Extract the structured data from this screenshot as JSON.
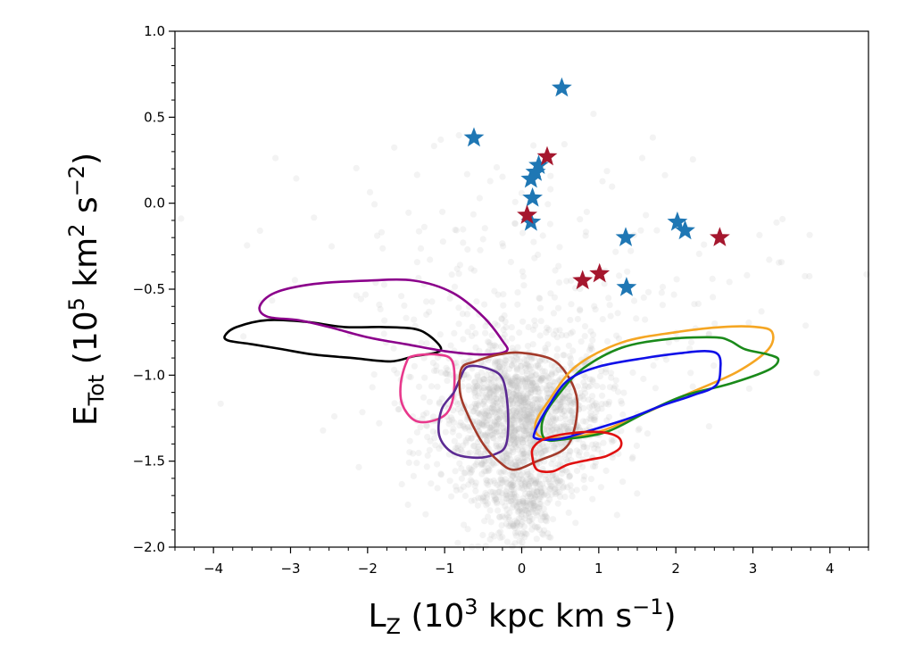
{
  "chart_data": {
    "type": "scatter",
    "xlabel": {
      "main": "L",
      "sub": "Z",
      "mid": " (10",
      "sup": "3",
      "tail": " kpc km s",
      "tailsup": "−1",
      "close": ")"
    },
    "ylabel": {
      "main": "E",
      "sub": "Tot",
      "mid": " (10",
      "sup": "5",
      "tail": " km",
      "sup2": "2",
      "tail2": " s",
      "tailsup": "−2",
      "close": ")"
    },
    "xlim": [
      -4.5,
      4.5
    ],
    "ylim": [
      -2.0,
      1.0
    ],
    "x_ticks": [
      -4,
      -3,
      -2,
      -1,
      0,
      1,
      2,
      3,
      4
    ],
    "y_ticks": [
      -2.0,
      -1.5,
      -1.0,
      -0.5,
      0.0,
      0.5,
      1.0
    ],
    "x_tick_labels": [
      "−4",
      "−3",
      "−2",
      "−1",
      "0",
      "1",
      "2",
      "3",
      "4"
    ],
    "y_tick_labels": [
      "−2.0",
      "−1.5",
      "−1.0",
      "−0.5",
      "0.0",
      "0.5",
      "1.0"
    ],
    "grid": false,
    "colors": {
      "blue_star": "#1f77b4",
      "red_star": "#a5172e",
      "background_points": "#bdbdbd"
    },
    "star_series": [
      {
        "color": "blue",
        "points": [
          [
            0.52,
            0.67
          ],
          [
            -0.62,
            0.38
          ],
          [
            0.22,
            0.22
          ],
          [
            0.18,
            0.18
          ],
          [
            0.12,
            0.14
          ],
          [
            0.14,
            0.03
          ],
          [
            0.12,
            -0.11
          ],
          [
            2.02,
            -0.11
          ],
          [
            2.12,
            -0.16
          ],
          [
            1.35,
            -0.2
          ],
          [
            1.36,
            -0.49
          ]
        ]
      },
      {
        "color": "red",
        "points": [
          [
            0.33,
            0.27
          ],
          [
            0.07,
            -0.07
          ],
          [
            2.57,
            -0.2
          ],
          [
            1.01,
            -0.41
          ],
          [
            0.79,
            -0.45
          ]
        ]
      }
    ],
    "contours": [
      {
        "color": "#000000",
        "points": [
          [
            -3.85,
            -0.77
          ],
          [
            -3.7,
            -0.72
          ],
          [
            -3.3,
            -0.68
          ],
          [
            -2.8,
            -0.69
          ],
          [
            -2.3,
            -0.72
          ],
          [
            -1.8,
            -0.72
          ],
          [
            -1.4,
            -0.73
          ],
          [
            -1.2,
            -0.77
          ],
          [
            -1.05,
            -0.84
          ],
          [
            -1.12,
            -0.87
          ],
          [
            -1.4,
            -0.89
          ],
          [
            -1.7,
            -0.92
          ],
          [
            -2.2,
            -0.9
          ],
          [
            -2.7,
            -0.88
          ],
          [
            -3.1,
            -0.85
          ],
          [
            -3.5,
            -0.82
          ],
          [
            -3.8,
            -0.8
          ]
        ]
      },
      {
        "color": "#8b008b",
        "points": [
          [
            -3.4,
            -0.6
          ],
          [
            -3.2,
            -0.52
          ],
          [
            -2.7,
            -0.47
          ],
          [
            -2.0,
            -0.45
          ],
          [
            -1.4,
            -0.45
          ],
          [
            -0.9,
            -0.52
          ],
          [
            -0.5,
            -0.66
          ],
          [
            -0.25,
            -0.8
          ],
          [
            -0.2,
            -0.86
          ],
          [
            -0.5,
            -0.88
          ],
          [
            -1.0,
            -0.86
          ],
          [
            -1.5,
            -0.82
          ],
          [
            -2.0,
            -0.78
          ],
          [
            -2.5,
            -0.72
          ],
          [
            -2.9,
            -0.68
          ],
          [
            -3.3,
            -0.66
          ]
        ]
      },
      {
        "color": "#e8388c",
        "points": [
          [
            -1.5,
            -0.93
          ],
          [
            -1.42,
            -0.89
          ],
          [
            -1.1,
            -0.88
          ],
          [
            -0.9,
            -0.92
          ],
          [
            -0.88,
            -1.1
          ],
          [
            -0.97,
            -1.22
          ],
          [
            -1.2,
            -1.27
          ],
          [
            -1.4,
            -1.26
          ],
          [
            -1.55,
            -1.17
          ],
          [
            -1.57,
            -1.05
          ]
        ]
      },
      {
        "color": "#5b2a92",
        "points": [
          [
            -0.8,
            -1.02
          ],
          [
            -0.7,
            -0.95
          ],
          [
            -0.45,
            -0.96
          ],
          [
            -0.25,
            -1.02
          ],
          [
            -0.18,
            -1.2
          ],
          [
            -0.2,
            -1.4
          ],
          [
            -0.35,
            -1.46
          ],
          [
            -0.6,
            -1.48
          ],
          [
            -0.9,
            -1.45
          ],
          [
            -1.07,
            -1.35
          ],
          [
            -1.04,
            -1.2
          ],
          [
            -0.88,
            -1.1
          ]
        ]
      },
      {
        "color": "#a33a2a",
        "points": [
          [
            -0.78,
            -0.96
          ],
          [
            -0.6,
            -0.92
          ],
          [
            -0.3,
            -0.88
          ],
          [
            0.0,
            -0.87
          ],
          [
            0.4,
            -0.91
          ],
          [
            0.62,
            -1.02
          ],
          [
            0.72,
            -1.15
          ],
          [
            0.68,
            -1.32
          ],
          [
            0.55,
            -1.43
          ],
          [
            0.2,
            -1.5
          ],
          [
            -0.1,
            -1.55
          ],
          [
            -0.3,
            -1.5
          ],
          [
            -0.5,
            -1.4
          ],
          [
            -0.7,
            -1.23
          ],
          [
            -0.8,
            -1.1
          ]
        ]
      },
      {
        "color": "#f5a623",
        "points": [
          [
            0.18,
            -1.28
          ],
          [
            0.35,
            -1.15
          ],
          [
            0.7,
            -0.95
          ],
          [
            1.3,
            -0.81
          ],
          [
            2.0,
            -0.75
          ],
          [
            2.6,
            -0.72
          ],
          [
            3.05,
            -0.72
          ],
          [
            3.25,
            -0.75
          ],
          [
            3.2,
            -0.85
          ],
          [
            2.8,
            -0.98
          ],
          [
            2.2,
            -1.1
          ],
          [
            1.6,
            -1.22
          ],
          [
            1.0,
            -1.33
          ],
          [
            0.6,
            -1.36
          ],
          [
            0.25,
            -1.36
          ]
        ]
      },
      {
        "color": "#1a8a1a",
        "points": [
          [
            0.28,
            -1.25
          ],
          [
            0.5,
            -1.1
          ],
          [
            0.8,
            -0.96
          ],
          [
            1.3,
            -0.84
          ],
          [
            1.9,
            -0.79
          ],
          [
            2.5,
            -0.78
          ],
          [
            2.7,
            -0.8
          ],
          [
            2.9,
            -0.85
          ],
          [
            3.2,
            -0.88
          ],
          [
            3.33,
            -0.91
          ],
          [
            3.2,
            -0.97
          ],
          [
            2.7,
            -1.05
          ],
          [
            2.1,
            -1.12
          ],
          [
            1.6,
            -1.22
          ],
          [
            1.1,
            -1.33
          ],
          [
            0.6,
            -1.37
          ],
          [
            0.3,
            -1.37
          ]
        ]
      },
      {
        "color": "#1010e8",
        "points": [
          [
            0.17,
            -1.33
          ],
          [
            0.35,
            -1.18
          ],
          [
            0.6,
            -1.03
          ],
          [
            1.0,
            -0.95
          ],
          [
            1.6,
            -0.9
          ],
          [
            2.1,
            -0.87
          ],
          [
            2.4,
            -0.86
          ],
          [
            2.55,
            -0.88
          ],
          [
            2.58,
            -0.95
          ],
          [
            2.52,
            -1.06
          ],
          [
            2.2,
            -1.12
          ],
          [
            1.8,
            -1.18
          ],
          [
            1.4,
            -1.25
          ],
          [
            0.9,
            -1.32
          ],
          [
            0.5,
            -1.37
          ],
          [
            0.2,
            -1.37
          ]
        ]
      },
      {
        "color": "#e01010",
        "points": [
          [
            0.15,
            -1.42
          ],
          [
            0.3,
            -1.37
          ],
          [
            0.6,
            -1.34
          ],
          [
            1.0,
            -1.33
          ],
          [
            1.25,
            -1.36
          ],
          [
            1.28,
            -1.42
          ],
          [
            1.1,
            -1.47
          ],
          [
            0.9,
            -1.49
          ],
          [
            0.6,
            -1.52
          ],
          [
            0.4,
            -1.56
          ],
          [
            0.2,
            -1.55
          ],
          [
            0.14,
            -1.48
          ]
        ]
      }
    ]
  }
}
